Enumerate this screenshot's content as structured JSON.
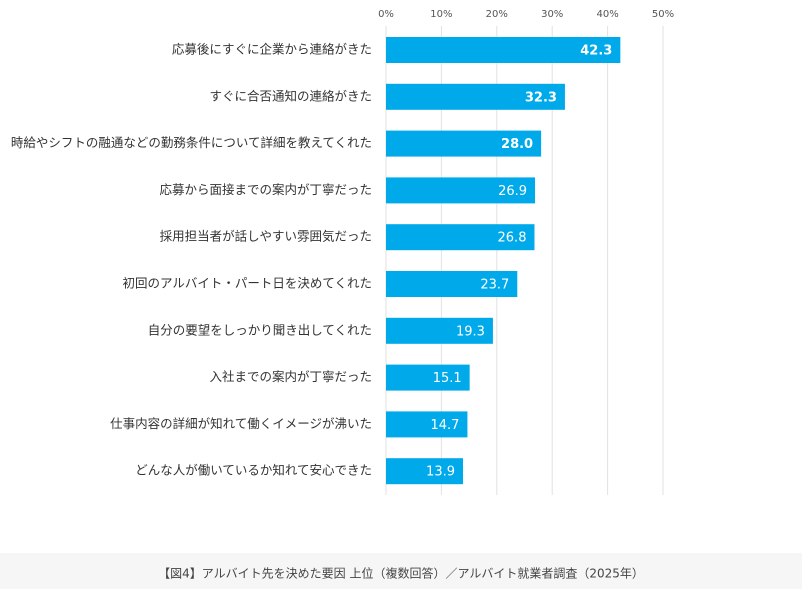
{
  "chart_data": {
    "type": "bar",
    "orientation": "horizontal",
    "caption": "【図4】アルバイト先を決めた要因 上位（複数回答）／アルバイト就業者調査（2025年）",
    "categories": [
      "応募後にすぐに企業から連絡がきた",
      "すぐに合否通知の連絡がきた",
      "時給やシフトの融通などの勤務条件について詳細を教えてくれた",
      "応募から面接までの案内が丁寧だった",
      "採用担当者が話しやすい雰囲気だった",
      "初回のアルバイト・パート日を決めてくれた",
      "自分の要望をしっかり聞き出してくれた",
      "入社までの案内が丁寧だった",
      "仕事内容の詳細が知れて働くイメージが沸いた",
      "どんな人が働いているか知れて安心できた"
    ],
    "values": [
      42.3,
      32.3,
      28.0,
      26.9,
      26.8,
      23.7,
      19.3,
      15.1,
      14.7,
      13.9
    ],
    "value_labels": [
      "42.3",
      "32.3",
      "28.0",
      "26.9",
      "26.8",
      "23.7",
      "19.3",
      "15.1",
      "14.7",
      "13.9"
    ],
    "value_label_bold": [
      true,
      true,
      true,
      false,
      false,
      false,
      false,
      false,
      false,
      false
    ],
    "color": "#00aaea",
    "xlim": [
      0,
      50
    ],
    "xticks": [
      {
        "value": 0,
        "label": "0%"
      },
      {
        "value": 10,
        "label": "10%"
      },
      {
        "value": 20,
        "label": "20%"
      },
      {
        "value": 30,
        "label": "30%"
      },
      {
        "value": 40,
        "label": "40%"
      },
      {
        "value": 50,
        "label": "50%"
      }
    ],
    "grid": true
  }
}
